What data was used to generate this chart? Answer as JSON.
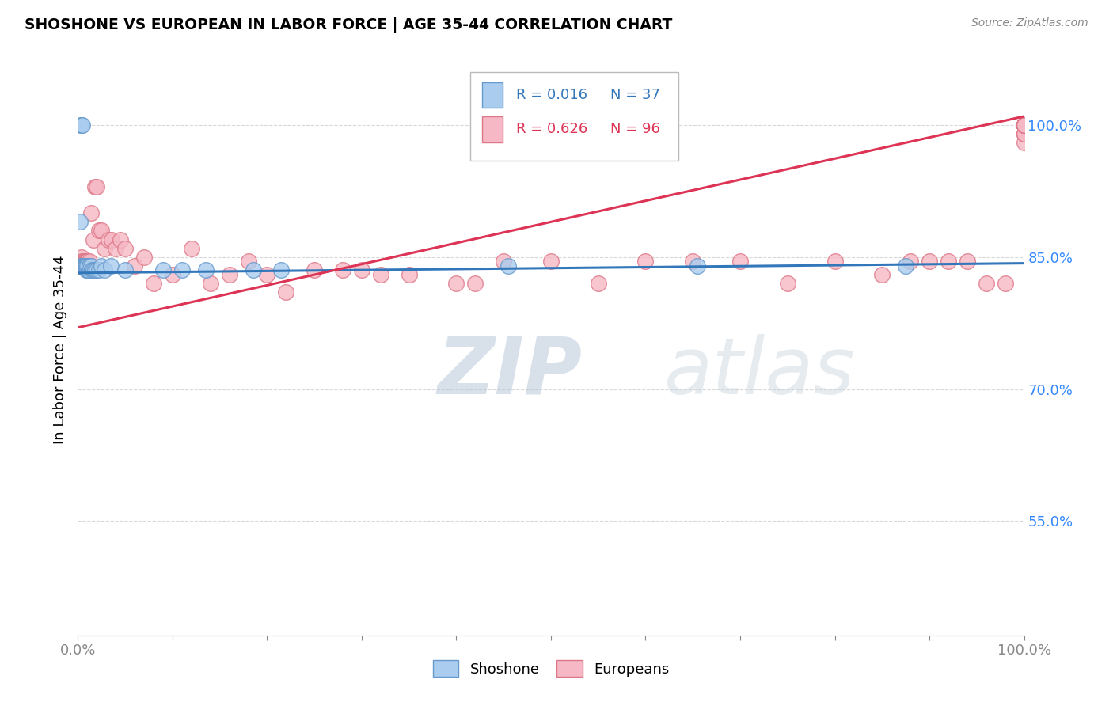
{
  "title": "SHOSHONE VS EUROPEAN IN LABOR FORCE | AGE 35-44 CORRELATION CHART",
  "source": "Source: ZipAtlas.com",
  "ylabel": "In Labor Force | Age 35-44",
  "xlim": [
    0.0,
    1.0
  ],
  "ylim": [
    0.42,
    1.07
  ],
  "x_ticks": [
    0.0,
    0.1,
    0.2,
    0.3,
    0.4,
    0.5,
    0.6,
    0.7,
    0.8,
    0.9,
    1.0
  ],
  "x_tick_labels": [
    "0.0%",
    "",
    "",
    "",
    "",
    "",
    "",
    "",
    "",
    "",
    "100.0%"
  ],
  "y_tick_positions": [
    0.55,
    0.7,
    0.85,
    1.0
  ],
  "y_tick_labels": [
    "55.0%",
    "70.0%",
    "85.0%",
    "100.0%"
  ],
  "background_color": "#ffffff",
  "grid_color": "#d8d8d8",
  "watermark_text": "ZIPatlas",
  "watermark_color": "#cdd9e5",
  "shoshone_color": "#aaccee",
  "shoshone_edge": "#6699cc",
  "europeans_color": "#f5b8c4",
  "europeans_edge": "#dd7788",
  "trend_shoshone_color": "#3377bb",
  "trend_europeans_color": "#dd3355",
  "trend_shoshone_x0": 0.0,
  "trend_shoshone_y0": 0.832,
  "trend_shoshone_x1": 1.0,
  "trend_shoshone_y1": 0.843,
  "trend_europeans_x0": 0.0,
  "trend_europeans_y0": 0.77,
  "trend_europeans_x1": 1.0,
  "trend_europeans_y1": 1.01,
  "shoshone_x": [
    0.002,
    0.003,
    0.003,
    0.004,
    0.004,
    0.005,
    0.005,
    0.005,
    0.006,
    0.006,
    0.007,
    0.007,
    0.008,
    0.008,
    0.009,
    0.009,
    0.01,
    0.01,
    0.011,
    0.012,
    0.012,
    0.014,
    0.015,
    0.016,
    0.018,
    0.02,
    0.022,
    0.025,
    0.028,
    0.035,
    0.05,
    0.09,
    0.11,
    0.135,
    0.185,
    0.215,
    0.455,
    0.655,
    0.875
  ],
  "shoshone_y": [
    0.89,
    0.84,
    1.0,
    0.84,
    1.0,
    0.84,
    1.0,
    0.84,
    0.84,
    0.84,
    0.84,
    0.84,
    0.84,
    0.84,
    0.84,
    0.835,
    0.835,
    0.84,
    0.835,
    0.84,
    0.84,
    0.84,
    0.835,
    0.835,
    0.835,
    0.835,
    0.835,
    0.84,
    0.835,
    0.84,
    0.835,
    0.835,
    0.835,
    0.835,
    0.835,
    0.835,
    0.84,
    0.84,
    0.84
  ],
  "europeans_x": [
    0.001,
    0.002,
    0.003,
    0.003,
    0.004,
    0.004,
    0.004,
    0.005,
    0.005,
    0.005,
    0.006,
    0.006,
    0.006,
    0.007,
    0.007,
    0.008,
    0.008,
    0.009,
    0.009,
    0.01,
    0.01,
    0.011,
    0.012,
    0.013,
    0.014,
    0.016,
    0.018,
    0.02,
    0.022,
    0.025,
    0.028,
    0.032,
    0.036,
    0.04,
    0.045,
    0.05,
    0.06,
    0.07,
    0.08,
    0.1,
    0.12,
    0.14,
    0.16,
    0.18,
    0.2,
    0.22,
    0.25,
    0.28,
    0.3,
    0.32,
    0.35,
    0.4,
    0.42,
    0.45,
    0.5,
    0.55,
    0.6,
    0.65,
    0.7,
    0.75,
    0.8,
    0.85,
    0.88,
    0.9,
    0.92,
    0.94,
    0.96,
    0.98,
    1.0,
    1.0,
    1.0,
    1.0,
    1.0,
    1.0,
    1.0,
    1.0,
    1.0,
    1.0,
    1.0,
    1.0,
    1.0,
    1.0,
    1.0,
    1.0,
    1.0,
    1.0,
    1.0,
    1.0,
    1.0,
    1.0,
    1.0,
    1.0,
    1.0,
    1.0,
    1.0,
    1.0
  ],
  "europeans_y": [
    0.84,
    0.845,
    0.84,
    0.84,
    0.84,
    0.845,
    0.85,
    0.84,
    0.84,
    0.845,
    0.84,
    0.845,
    0.84,
    0.84,
    0.845,
    0.84,
    0.845,
    0.84,
    0.845,
    0.845,
    0.84,
    0.84,
    0.845,
    0.84,
    0.9,
    0.87,
    0.93,
    0.93,
    0.88,
    0.88,
    0.86,
    0.87,
    0.87,
    0.86,
    0.87,
    0.86,
    0.84,
    0.85,
    0.82,
    0.83,
    0.86,
    0.82,
    0.83,
    0.845,
    0.83,
    0.81,
    0.835,
    0.835,
    0.835,
    0.83,
    0.83,
    0.82,
    0.82,
    0.845,
    0.845,
    0.82,
    0.845,
    0.845,
    0.845,
    0.82,
    0.845,
    0.83,
    0.845,
    0.845,
    0.845,
    0.845,
    0.82,
    0.82,
    1.0,
    1.0,
    1.0,
    1.0,
    0.99,
    0.98,
    1.0,
    0.99,
    1.0,
    1.0,
    1.0,
    1.0,
    1.0,
    1.0,
    1.0,
    0.99,
    1.0,
    1.0,
    1.0,
    1.0,
    1.0,
    1.0,
    1.0,
    1.0,
    1.0,
    1.0,
    1.0,
    1.0
  ]
}
